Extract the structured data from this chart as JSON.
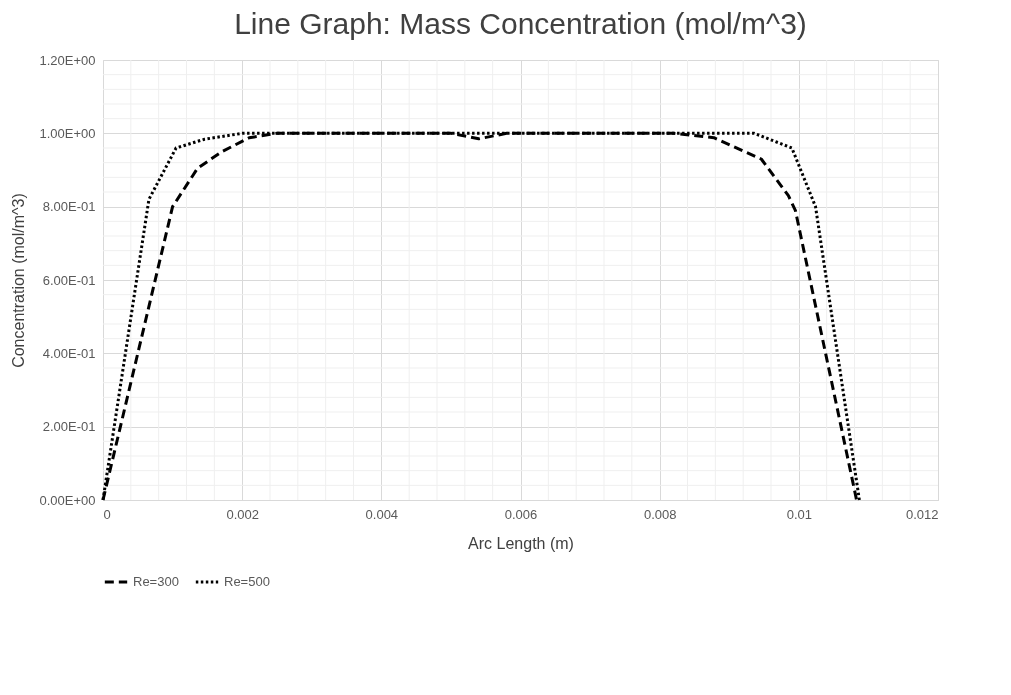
{
  "chart_data": {
    "type": "line",
    "title": "Line Graph: Mass Concentration (mol/m^3)",
    "xlabel": "Arc Length (m)",
    "ylabel": "Concentration  (mol/m^3)",
    "series": [
      {
        "name": "Re=300",
        "color": "#000000",
        "line_style": "dashed",
        "x": [
          0,
          0.001,
          0.00136,
          0.00171,
          0.0021,
          0.0025,
          0.0035,
          0.0045,
          0.005,
          0.0054,
          0.0058,
          0.0065,
          0.0075,
          0.0082,
          0.00878,
          0.00946,
          0.00985,
          0.00995,
          0.01083
        ],
        "values": [
          0,
          0.8,
          0.905,
          0.95,
          0.988,
          1.0,
          1.0,
          1.0,
          1.0,
          0.985,
          1.0,
          1.0,
          1.0,
          1.0,
          0.988,
          0.93,
          0.83,
          0.79,
          0
        ]
      },
      {
        "name": "Re=500",
        "color": "#000000",
        "line_style": "dotted",
        "x": [
          0,
          0.00066,
          0.00105,
          0.00146,
          0.002,
          0.003,
          0.004,
          0.005,
          0.006,
          0.007,
          0.008,
          0.00936,
          0.0099,
          0.01024,
          0.01087
        ],
        "values": [
          0,
          0.82,
          0.96,
          0.984,
          1.0,
          1.0,
          1.0,
          1.0,
          1.0,
          1.0,
          1.0,
          1.0,
          0.96,
          0.8,
          0
        ]
      }
    ],
    "xlim": [
      0,
      0.012
    ],
    "xticks": [
      0,
      0.002,
      0.004,
      0.006,
      0.008,
      0.01,
      0.012
    ],
    "ylim": [
      0,
      1.2
    ],
    "yticks": [
      {
        "value": 0,
        "label": "0.00E+00"
      },
      {
        "value": 0.2,
        "label": "2.00E-01"
      },
      {
        "value": 0.4,
        "label": "4.00E-01"
      },
      {
        "value": 0.6,
        "label": "6.00E-01"
      },
      {
        "value": 0.8,
        "label": "8.00E-01"
      },
      {
        "value": 1,
        "label": "1.00E+00"
      },
      {
        "value": 1.2,
        "label": "1.20E+00"
      }
    ],
    "grid": true,
    "legend": "bottom",
    "marker": "none"
  }
}
